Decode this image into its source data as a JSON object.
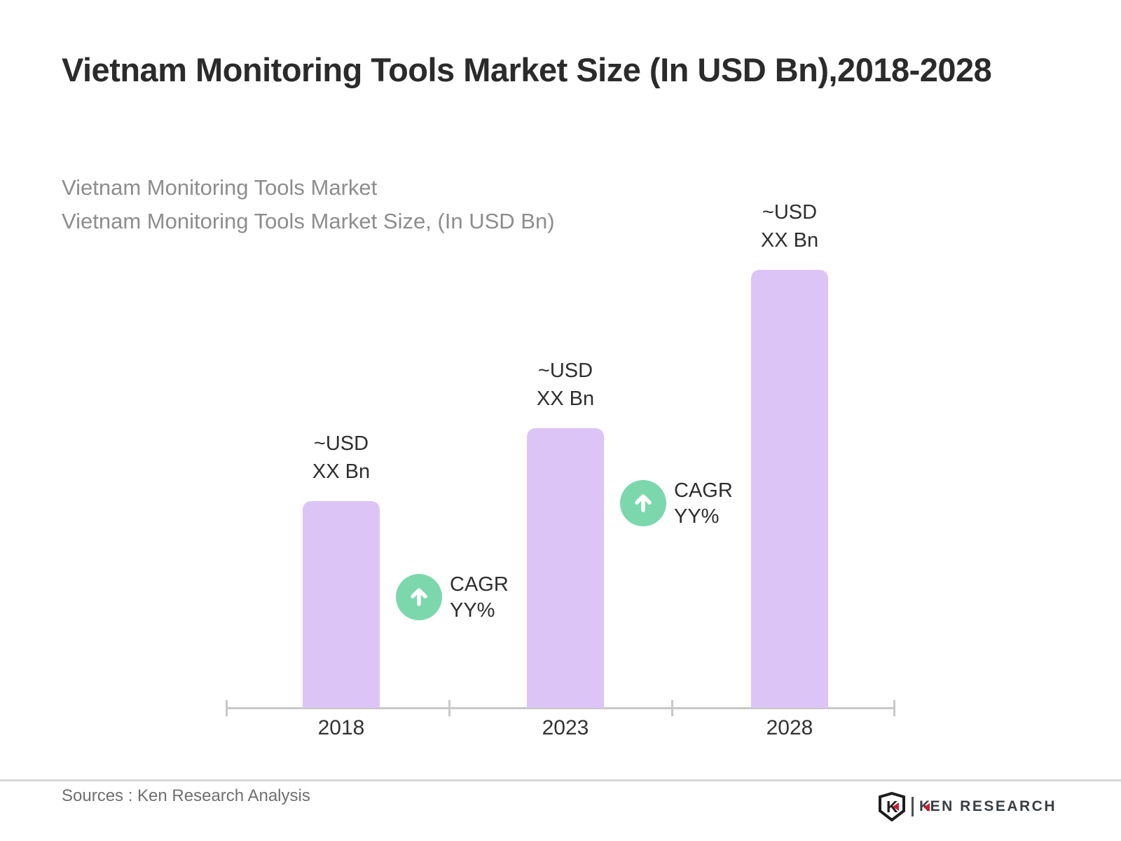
{
  "page": {
    "title": "Vietnam Monitoring Tools Market Size (In USD Bn),2018-2028",
    "subtitle_line1": "Vietnam Monitoring Tools Market",
    "subtitle_line2": "Vietnam Monitoring Tools Market Size, (In USD Bn)",
    "source_text": "Sources : Ken Research Analysis",
    "logo": {
      "shield_letter": "K",
      "wordmark_k": "K",
      "wordmark_rest": "EN RESEARCH"
    }
  },
  "chart_data": {
    "type": "bar",
    "title": "Vietnam Monitoring Tools Market Size (In USD Bn), 2018-2028",
    "xlabel": "",
    "ylabel": "Market Size (In USD Bn)",
    "categories": [
      "2018",
      "2023",
      "2028"
    ],
    "values": [
      "XX",
      "XX",
      "XX"
    ],
    "value_labels": [
      [
        "~USD",
        "XX Bn"
      ],
      [
        "~USD",
        "XX Bn"
      ],
      [
        "~USD",
        "XX Bn"
      ]
    ],
    "relative_heights": [
      0.472,
      0.638,
      1.0
    ],
    "annotations": [
      {
        "icon": "up-arrow-circle-icon",
        "line1": "CAGR",
        "line2": "YY%",
        "between": [
          "2018",
          "2023"
        ]
      },
      {
        "icon": "up-arrow-circle-icon",
        "line1": "CAGR",
        "line2": "YY%",
        "between": [
          "2023",
          "2028"
        ]
      }
    ],
    "grid": false,
    "legend": false,
    "colors": {
      "bar_fill": "#ddc4f6",
      "annotation_circle": "#7cd7ad",
      "annotation_arrow": "#ffffff",
      "axis": "#c8c8c8"
    }
  }
}
